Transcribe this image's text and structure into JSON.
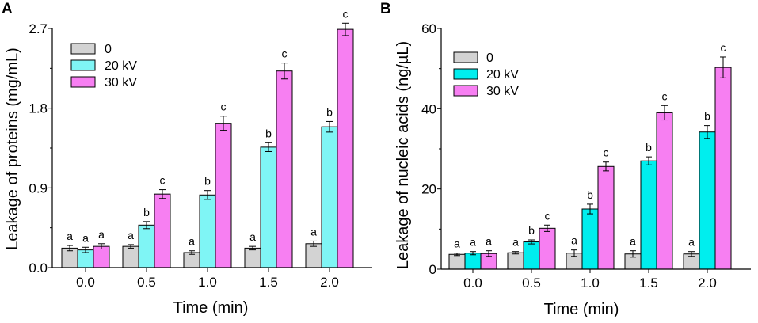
{
  "chart_data": [
    {
      "type": "bar",
      "panel": "A",
      "title": "",
      "xlabel": "Time (min)",
      "ylabel": "Leakage of proteins (mg/mL)",
      "categories": [
        "0.0",
        "0.5",
        "1.0",
        "1.5",
        "2.0"
      ],
      "ylim": [
        0,
        2.7
      ],
      "yticks": [
        "0.0",
        "0.9",
        "1.8",
        "2.7"
      ],
      "legend_position": "top-left",
      "series": [
        {
          "name": "0",
          "color": "#d3d3d3",
          "values": [
            0.22,
            0.24,
            0.17,
            0.22,
            0.27
          ],
          "errors": [
            0.03,
            0.02,
            0.02,
            0.02,
            0.03
          ],
          "labels": [
            "a",
            "a",
            "a",
            "a",
            "a"
          ]
        },
        {
          "name": "20 kV",
          "color": "#7ff5f5",
          "values": [
            0.2,
            0.48,
            0.82,
            1.36,
            1.59
          ],
          "errors": [
            0.03,
            0.04,
            0.05,
            0.05,
            0.06
          ],
          "labels": [
            "a",
            "b",
            "b",
            "b",
            "b"
          ]
        },
        {
          "name": "30 kV",
          "color": "#f77ff2",
          "values": [
            0.24,
            0.83,
            1.63,
            2.22,
            2.69
          ],
          "errors": [
            0.03,
            0.05,
            0.08,
            0.09,
            0.07
          ],
          "labels": [
            "a",
            "c",
            "c",
            "c",
            "c"
          ]
        }
      ]
    },
    {
      "type": "bar",
      "panel": "B",
      "title": "",
      "xlabel": "Time (min)",
      "ylabel": "Leakage of nucleic acids (ng/µL)",
      "categories": [
        "0.0",
        "0.5",
        "1.0",
        "1.5",
        "2.0"
      ],
      "ylim": [
        0,
        60
      ],
      "yticks": [
        "0",
        "20",
        "40",
        "60"
      ],
      "legend_position": "top-left",
      "series": [
        {
          "name": "0",
          "color": "#d3d3d3",
          "values": [
            3.7,
            4.1,
            4.0,
            3.8,
            3.8
          ],
          "errors": [
            0.3,
            0.3,
            0.8,
            0.8,
            0.6
          ],
          "labels": [
            "a",
            "a",
            "a",
            "a",
            "a"
          ]
        },
        {
          "name": "20 kV",
          "color": "#00eeee",
          "values": [
            4.0,
            6.8,
            15.0,
            27.0,
            34.2
          ],
          "errors": [
            0.4,
            0.5,
            1.2,
            1.0,
            1.6
          ],
          "labels": [
            "a",
            "b",
            "b",
            "b",
            "b"
          ]
        },
        {
          "name": "30 kV",
          "color": "#f77ff2",
          "values": [
            3.9,
            10.2,
            25.6,
            39.0,
            50.3
          ],
          "errors": [
            0.7,
            0.8,
            1.1,
            1.8,
            2.6
          ],
          "labels": [
            "a",
            "c",
            "c",
            "c",
            "c"
          ]
        }
      ]
    }
  ]
}
